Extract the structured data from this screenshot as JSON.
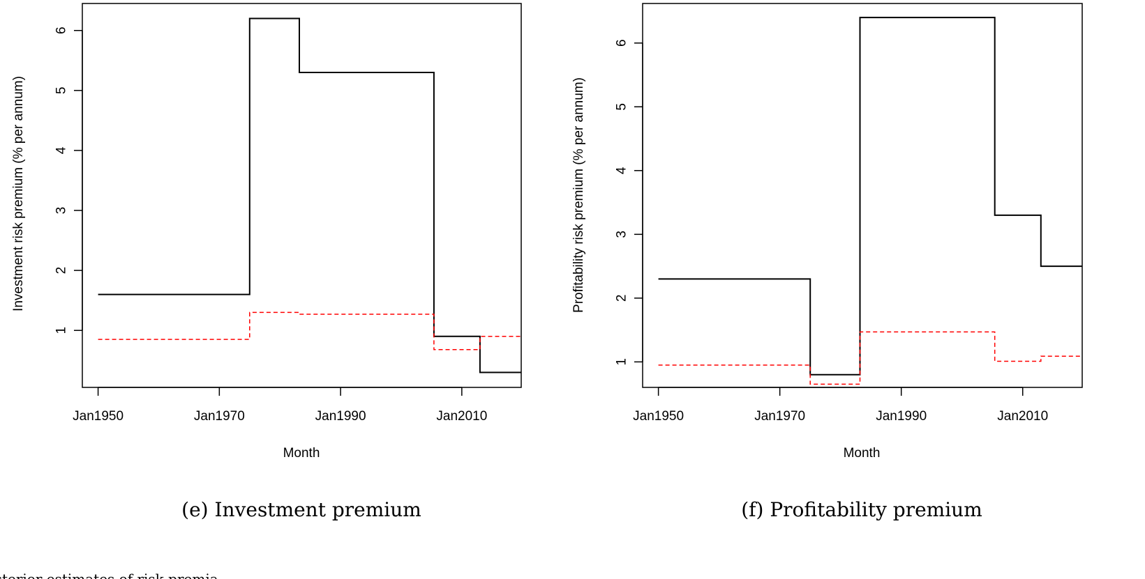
{
  "chart_data": [
    {
      "type": "line",
      "caption": "(e) Investment premium",
      "xlabel": "Month",
      "ylabel": "Investment risk premium (% per annum)",
      "x_ticks": [
        "Jan1950",
        "Jan1970",
        "Jan1990",
        "Jan2010"
      ],
      "x_tick_values": [
        1950,
        1970,
        1990,
        2010
      ],
      "y_ticks": [
        "1",
        "2",
        "3",
        "4",
        "5",
        "6"
      ],
      "y_tick_values": [
        1,
        2,
        3,
        4,
        5,
        6
      ],
      "xlim": [
        1947.4,
        2019.8
      ],
      "ylim": [
        0.05,
        6.45
      ],
      "grid": false,
      "series": [
        {
          "color": "#000000",
          "style": "solid",
          "steps": [
            [
              1950.0,
              1.6
            ],
            [
              1975.0,
              6.2
            ],
            [
              1983.2,
              5.3
            ],
            [
              2005.4,
              0.9
            ],
            [
              2013.0,
              0.3
            ],
            [
              2022.0,
              null
            ]
          ]
        },
        {
          "color": "#ff0000",
          "style": "dashed",
          "steps": [
            [
              1950.0,
              0.85
            ],
            [
              1975.0,
              1.3
            ],
            [
              1983.2,
              1.27
            ],
            [
              2005.4,
              0.68
            ],
            [
              2013.0,
              0.9
            ],
            [
              2021.0,
              null
            ]
          ]
        }
      ]
    },
    {
      "type": "line",
      "caption": "(f) Profitability premium",
      "xlabel": "Month",
      "ylabel": "Profitability risk premium (% per annum)",
      "x_ticks": [
        "Jan1950",
        "Jan1970",
        "Jan1990",
        "Jan2010"
      ],
      "x_tick_values": [
        1950,
        1970,
        1990,
        2010
      ],
      "y_ticks": [
        "1",
        "2",
        "3",
        "4",
        "5",
        "6"
      ],
      "y_tick_values": [
        1,
        2,
        3,
        4,
        5,
        6
      ],
      "xlim": [
        1947.4,
        2019.8
      ],
      "ylim": [
        0.6,
        6.62
      ],
      "grid": false,
      "series": [
        {
          "color": "#000000",
          "style": "solid",
          "steps": [
            [
              1950.0,
              2.3
            ],
            [
              1975.0,
              0.8
            ],
            [
              1983.2,
              6.4
            ],
            [
              2005.4,
              3.3
            ],
            [
              2013.0,
              2.5
            ],
            [
              2022.0,
              null
            ]
          ]
        },
        {
          "color": "#ff0000",
          "style": "dashed",
          "steps": [
            [
              1950.0,
              0.95
            ],
            [
              1975.0,
              0.65
            ],
            [
              1983.2,
              1.47
            ],
            [
              2005.4,
              1.01
            ],
            [
              2013.0,
              1.09
            ],
            [
              2022.0,
              null
            ]
          ]
        }
      ]
    }
  ],
  "footer_text": "Posterior estimates of risk premia"
}
